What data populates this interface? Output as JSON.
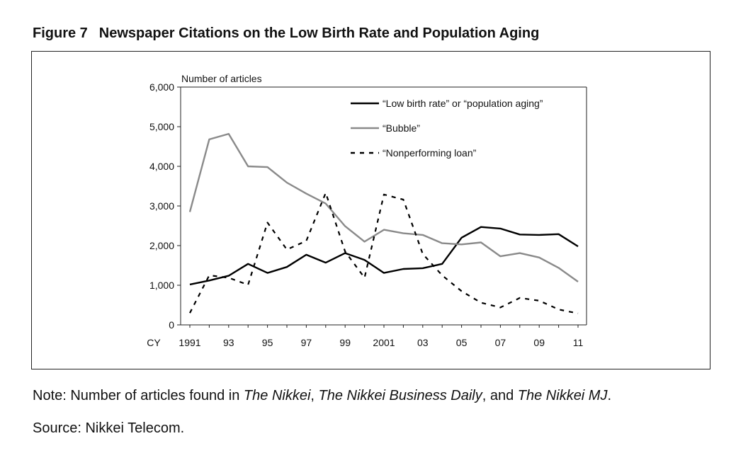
{
  "figure": {
    "number": "Figure 7",
    "title": "Newspaper Citations on the Low Birth Rate and Population Aging"
  },
  "note": {
    "prefix": "Note: Number of articles found in ",
    "pub1": "The Nikkei",
    "sep1": ", ",
    "pub2": "The Nikkei Business Daily",
    "sep2": ", and ",
    "pub3": "The Nikkei MJ",
    "suffix": "."
  },
  "source": "Source: Nikkei Telecom.",
  "chart_data": {
    "type": "line",
    "title": "Newspaper Citations on the Low Birth Rate and Population Aging",
    "ylabel": "Number of articles",
    "xlabel_prefix": "CY",
    "ylim": [
      0,
      6000
    ],
    "xlim": [
      1991,
      2011
    ],
    "yticks": [
      0,
      1000,
      2000,
      3000,
      4000,
      5000,
      6000
    ],
    "ytick_labels": [
      "0",
      "1,000",
      "2,000",
      "3,000",
      "4,000",
      "5,000",
      "6,000"
    ],
    "xtick_labels": [
      "1991",
      "93",
      "95",
      "97",
      "99",
      "2001",
      "03",
      "05",
      "07",
      "09",
      "11"
    ],
    "x": [
      1991,
      1992,
      1993,
      1994,
      1995,
      1996,
      1997,
      1998,
      1999,
      2000,
      2001,
      2002,
      2003,
      2004,
      2005,
      2006,
      2007,
      2008,
      2009,
      2010,
      2011
    ],
    "series": [
      {
        "name": "“Low birth rate” or “population aging”",
        "color": "#000000",
        "style": "solid",
        "values": [
          1020,
          1120,
          1240,
          1540,
          1310,
          1460,
          1770,
          1570,
          1810,
          1640,
          1310,
          1410,
          1430,
          1540,
          2200,
          2470,
          2430,
          2280,
          2270,
          2290,
          1980
        ]
      },
      {
        "name": "“Bubble”",
        "color": "#8a8a8a",
        "style": "solid",
        "values": [
          2850,
          4680,
          4820,
          4000,
          3980,
          3590,
          3310,
          3060,
          2490,
          2100,
          2400,
          2310,
          2270,
          2060,
          2030,
          2080,
          1730,
          1810,
          1700,
          1440,
          1090
        ]
      },
      {
        "name": "“Nonperforming loan”",
        "color": "#000000",
        "style": "dashed",
        "values": [
          300,
          1250,
          1190,
          1010,
          2580,
          1900,
          2120,
          3330,
          1850,
          1190,
          3290,
          3160,
          1790,
          1250,
          850,
          560,
          440,
          680,
          610,
          390,
          290
        ]
      }
    ],
    "legend": "top-right"
  }
}
